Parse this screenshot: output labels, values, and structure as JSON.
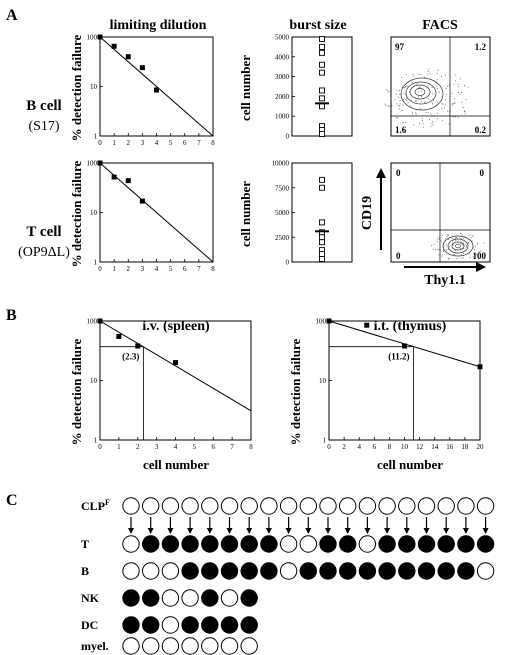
{
  "panel_labels": {
    "a": "A",
    "b": "B",
    "c": "C"
  },
  "row_labels": {
    "bcell": {
      "line1": "B cell",
      "line2": "(S17)"
    },
    "tcell": {
      "line1": "T cell",
      "line2": "(OP9ΔL)"
    }
  },
  "col_titles": {
    "ld": "limiting dilution",
    "bs": "burst size",
    "facs": "FACS"
  },
  "axes": {
    "detection": "% detection failure",
    "cellnum": "cell number",
    "cd19": "CD19",
    "thy": "Thy1.1"
  },
  "facs_b": {
    "q_tl": "97",
    "q_tr": "1.2",
    "q_bl": "1.6",
    "q_br": "0.2"
  },
  "facs_t": {
    "q_tl": "0",
    "q_tr": "0",
    "q_bl": "0",
    "q_br": "100"
  },
  "chart_data": [
    {
      "id": "ld_b",
      "type": "scatter",
      "title": "limiting dilution",
      "ylabel": "% detection failure",
      "yscale": "log",
      "ylim": [
        1,
        100
      ],
      "xlim": [
        0,
        8
      ],
      "x_ticks": [
        0,
        1,
        2,
        3,
        4,
        5,
        6,
        7,
        8
      ],
      "y_ticks": [
        1,
        10,
        100
      ],
      "points": [
        [
          0,
          100
        ],
        [
          1,
          65
        ],
        [
          2,
          40
        ],
        [
          3,
          24
        ],
        [
          4,
          8.5
        ]
      ],
      "fit_line": [
        [
          0,
          100
        ],
        [
          8,
          1
        ]
      ]
    },
    {
      "id": "bs_b",
      "type": "scatter",
      "title": "burst size",
      "ylabel": "cell number",
      "ylim": [
        0,
        5000
      ],
      "y_ticks": [
        0,
        1000,
        2000,
        3000,
        4000,
        5000
      ],
      "values": [
        4900,
        4500,
        4200,
        3600,
        3200,
        2300,
        1900,
        1500,
        500,
        300,
        100
      ],
      "median": 1650
    },
    {
      "id": "ld_t",
      "type": "scatter",
      "ylabel": "% detection failure",
      "yscale": "log",
      "ylim": [
        1,
        100
      ],
      "xlim": [
        0,
        8
      ],
      "x_ticks": [
        0,
        1,
        2,
        3,
        4,
        5,
        6,
        7,
        8
      ],
      "y_ticks": [
        1,
        10,
        100
      ],
      "points": [
        [
          0,
          100
        ],
        [
          1,
          52
        ],
        [
          2,
          44
        ],
        [
          3,
          17
        ]
      ],
      "fit_line": [
        [
          0,
          100
        ],
        [
          8,
          1
        ]
      ]
    },
    {
      "id": "bs_t",
      "type": "scatter",
      "ylabel": "cell number",
      "ylim": [
        0,
        10000
      ],
      "y_ticks": [
        0,
        2500,
        5000,
        7500,
        10000
      ],
      "values": [
        8300,
        7500,
        4000,
        3000,
        2500,
        2000,
        1200,
        800,
        300
      ],
      "median": 3100
    },
    {
      "id": "iv",
      "type": "scatter",
      "title": "i.v. (spleen)",
      "xlabel": "cell number",
      "ylabel": "% detection failure",
      "yscale": "log",
      "ylim": [
        1,
        100
      ],
      "xlim": [
        0,
        8
      ],
      "x_ticks": [
        0,
        1,
        2,
        3,
        4,
        5,
        6,
        7,
        8
      ],
      "y_ticks": [
        1,
        10,
        100
      ],
      "points": [
        [
          0,
          100
        ],
        [
          1,
          55
        ],
        [
          2,
          38
        ],
        [
          4,
          20
        ]
      ],
      "fit_line": [
        [
          0,
          100
        ],
        [
          8,
          3.1
        ]
      ],
      "marker": {
        "x": 2.3,
        "y": 37,
        "label": "(2.3)"
      }
    },
    {
      "id": "it",
      "type": "scatter",
      "title": "i.t. (thymus)",
      "xlabel": "cell number",
      "ylabel": "% detection failure",
      "yscale": "log",
      "ylim": [
        1,
        100
      ],
      "xlim": [
        0,
        20
      ],
      "x_ticks": [
        0,
        2,
        4,
        6,
        8,
        10,
        12,
        14,
        16,
        18,
        20
      ],
      "y_ticks": [
        1,
        10,
        100
      ],
      "points": [
        [
          0,
          100
        ],
        [
          5,
          85
        ],
        [
          10,
          38
        ],
        [
          20,
          17
        ]
      ],
      "fit_line": [
        [
          0,
          100
        ],
        [
          20,
          17
        ]
      ],
      "marker": {
        "x": 11.2,
        "y": 37,
        "label": "(11.2)"
      }
    },
    {
      "id": "clones",
      "type": "table",
      "rows": [
        {
          "label": "CLP",
          "sup": "F",
          "values": [
            0,
            0,
            0,
            0,
            0,
            0,
            0,
            0,
            0,
            0,
            0,
            0,
            0,
            0,
            0,
            0,
            0,
            0,
            0
          ]
        },
        {
          "label": "T",
          "values": [
            0,
            1,
            1,
            1,
            1,
            1,
            1,
            1,
            0,
            0,
            1,
            1,
            0,
            1,
            1,
            1,
            1,
            1,
            1
          ]
        },
        {
          "label": "B",
          "values": [
            0,
            0,
            0,
            1,
            1,
            1,
            1,
            1,
            0,
            1,
            1,
            1,
            1,
            1,
            1,
            1,
            1,
            1,
            0
          ]
        },
        {
          "label": "NK",
          "values": [
            1,
            1,
            0,
            0,
            1,
            0,
            1
          ]
        },
        {
          "label": "DC",
          "values": [
            1,
            1,
            0,
            1,
            1,
            1,
            1
          ]
        },
        {
          "label": "myel.",
          "values": [
            0,
            0,
            0,
            0,
            0,
            0,
            0
          ]
        }
      ]
    }
  ]
}
